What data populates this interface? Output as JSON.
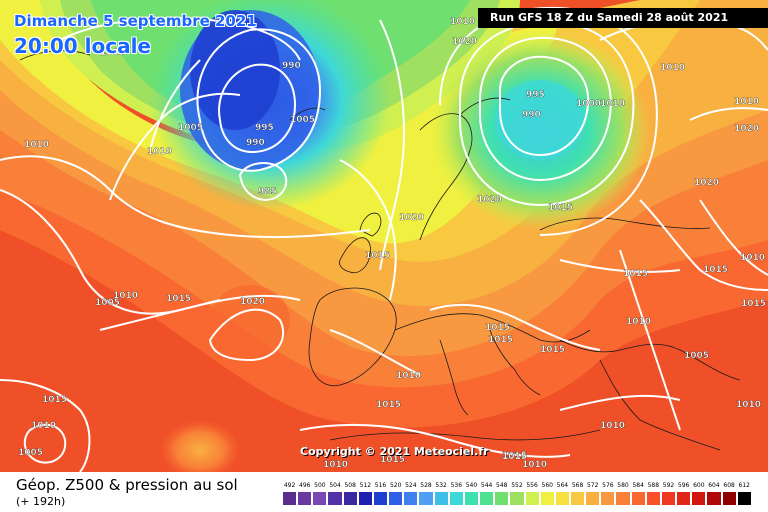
{
  "header": {
    "date": "Dimanche 5 septembre 2021",
    "time": "20:00 locale",
    "run": "Run GFS 18 Z du Samedi 28 août 2021",
    "copyright": "Copyright © 2021 Meteociel.fr"
  },
  "footer": {
    "title": "Géop. Z500 & pression au sol",
    "subtitle": "(+ 192h)"
  },
  "legend": {
    "values": [
      "492",
      "496",
      "500",
      "504",
      "508",
      "512",
      "516",
      "520",
      "524",
      "528",
      "532",
      "536",
      "540",
      "544",
      "548",
      "552",
      "556",
      "560",
      "564",
      "568",
      "572",
      "576",
      "580",
      "584",
      "588",
      "592",
      "596",
      "600",
      "604",
      "608",
      "612"
    ],
    "colors": [
      "#5a2d8c",
      "#6a3aa0",
      "#7a48b4",
      "#5232a6",
      "#3a28a0",
      "#1f1fb0",
      "#1f3fd0",
      "#2f5fe6",
      "#3f7ff0",
      "#4f9ff4",
      "#3fbfe8",
      "#3fd8d8",
      "#3fe0b0",
      "#4fe090",
      "#6fe070",
      "#9fe060",
      "#cff050",
      "#f0f040",
      "#f8e040",
      "#f8c840",
      "#f8b040",
      "#f89840",
      "#f88038",
      "#f86830",
      "#f85028",
      "#f03820",
      "#e02818",
      "#d01810",
      "#b00808",
      "#900000",
      "#000000"
    ]
  },
  "isobars": [
    "1005",
    "990",
    "1005",
    "995",
    "990",
    "985",
    "1010",
    "1010",
    "1005",
    "1020",
    "1015",
    "1020",
    "1015",
    "1010",
    "995",
    "990",
    "1000",
    "1010",
    "1020",
    "1015",
    "1015",
    "1005",
    "1015",
    "1020",
    "1010",
    "1015",
    "1015",
    "1015",
    "1010",
    "1010",
    "1015",
    "1020",
    "1015",
    "1010",
    "1015",
    "1015",
    "1010",
    "1020",
    "1010",
    "1005",
    "1010",
    "1015",
    "1015",
    "1010",
    "1010",
    "1010",
    "1010",
    "1005"
  ]
}
